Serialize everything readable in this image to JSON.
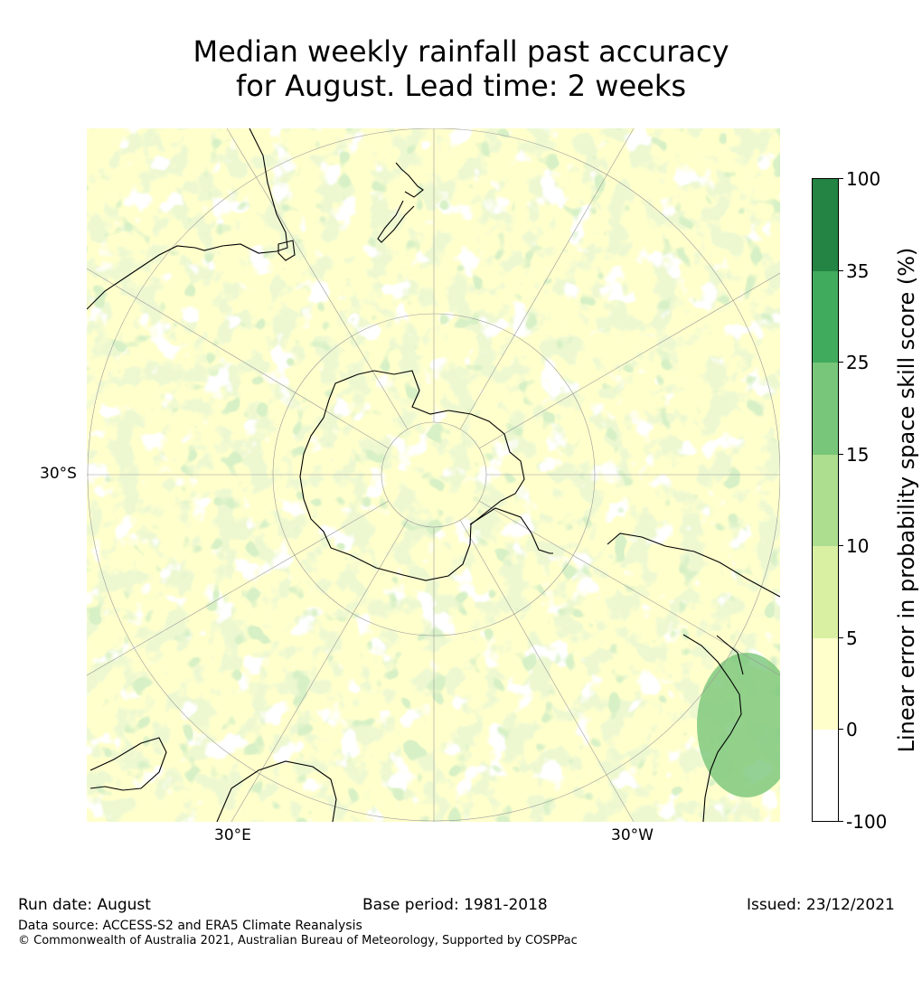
{
  "title_line1": "Median weekly rainfall past accuracy",
  "title_line2": "for August. Lead time: 2 weeks",
  "map_labels": {
    "lat_left": "30°S",
    "lon_east": "30°E",
    "lon_west": "30°W"
  },
  "colorbar": {
    "label": "Linear error in probability space skill score (%)",
    "ticks": [
      "100",
      "35",
      "25",
      "15",
      "10",
      "5",
      "0",
      "-100"
    ],
    "colors": [
      "#ffffff",
      "#ffffcc",
      "#d9f0a3",
      "#addd8e",
      "#78c679",
      "#41ab5d",
      "#238443"
    ]
  },
  "footer": {
    "run_date": "Run date: August",
    "base_period": "Base period: 1981-2018",
    "issued": "Issued: 23/12/2021",
    "data_source": "Data source: ACCESS-S2 and ERA5 Climate Reanalysis",
    "copyright": "© Commonwealth of Australia 2021, Australian Bureau of Meteorology, Supported by COSPPac"
  }
}
